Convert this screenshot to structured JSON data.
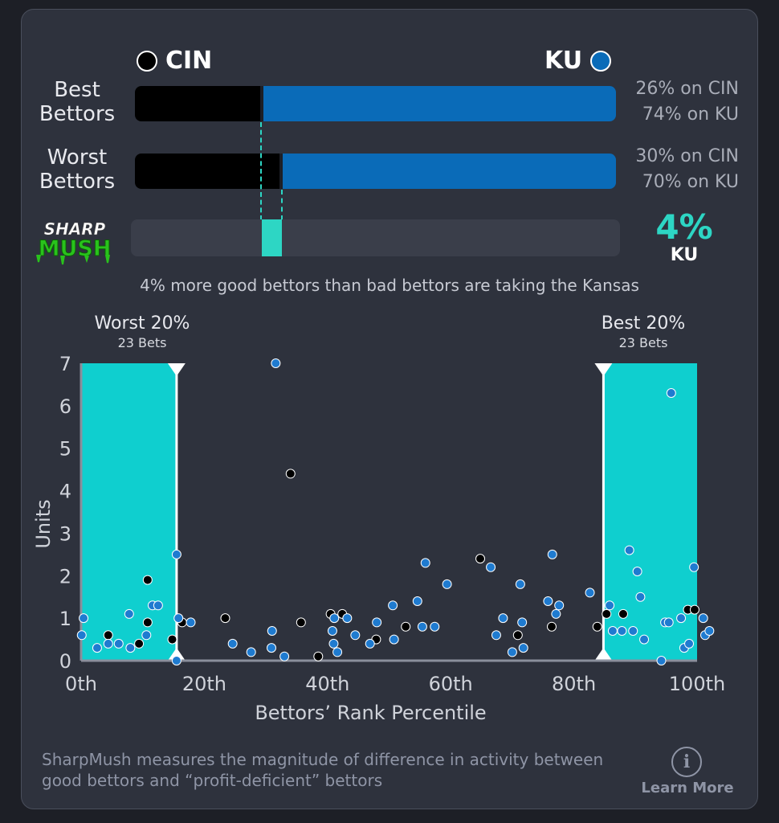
{
  "teams": {
    "left": {
      "abbr": "CIN",
      "color": "#000000"
    },
    "right": {
      "abbr": "KU",
      "color": "#0a6bb8"
    }
  },
  "rows": [
    {
      "label_line1": "Best",
      "label_line2": "Bettors",
      "cin_pct": 26,
      "ku_pct": 74,
      "cin_text": "26% on CIN",
      "ku_text": "74% on KU"
    },
    {
      "label_line1": "Worst",
      "label_line2": "Bettors",
      "cin_pct": 30,
      "ku_pct": 70,
      "cin_text": "30% on CIN",
      "ku_text": "70% on KU"
    }
  ],
  "sharpmush": {
    "logo_top": "SHARP",
    "logo_bottom": "MUSH",
    "value_text": "4%",
    "team_text": "KU",
    "accent": "#2dd6c4"
  },
  "summary": "4% more good bettors than bad bettors are taking the Kansas",
  "ranges": {
    "worst": {
      "title": "Worst 20%",
      "sub": "23 Bets"
    },
    "best": {
      "title": "Best 20%",
      "sub": "23 Bets"
    }
  },
  "chart_data": {
    "type": "scatter",
    "xlabel": "Bettors’ Rank Percentile",
    "ylabel": "Units",
    "xlim": [
      0,
      100
    ],
    "ylim": [
      0,
      7
    ],
    "x_ticks": [
      0,
      20,
      40,
      60,
      80,
      100
    ],
    "x_tick_labels": [
      "0th",
      "20th",
      "40th",
      "60th",
      "80th",
      "100th"
    ],
    "y_ticks": [
      0,
      1,
      2,
      3,
      4,
      5,
      6,
      7
    ],
    "highlight_bands": [
      {
        "from": 0,
        "to": 15.5
      },
      {
        "from": 84.8,
        "to": 100
      }
    ],
    "series": [
      {
        "color": "#000000",
        "points": [
          [
            4.4,
            0.6
          ],
          [
            9.4,
            0.4
          ],
          [
            10.8,
            1.9
          ],
          [
            10.8,
            0.9
          ],
          [
            14.8,
            0.5
          ],
          [
            16.4,
            0.9
          ],
          [
            23.4,
            1.0
          ],
          [
            34.0,
            4.4
          ],
          [
            35.7,
            0.9
          ],
          [
            38.5,
            0.1
          ],
          [
            40.5,
            1.1
          ],
          [
            42.4,
            1.1
          ],
          [
            47.9,
            0.5
          ],
          [
            52.7,
            0.8
          ],
          [
            64.8,
            2.4
          ],
          [
            70.9,
            0.6
          ],
          [
            76.4,
            0.8
          ],
          [
            83.8,
            0.8
          ],
          [
            85.3,
            1.1
          ],
          [
            88.0,
            1.1
          ],
          [
            98.5,
            1.2
          ],
          [
            99.6,
            1.2
          ]
        ]
      },
      {
        "color": "#1f7bd0",
        "points": [
          [
            0.4,
            1.0
          ],
          [
            0.1,
            0.6
          ],
          [
            2.6,
            0.3
          ],
          [
            4.4,
            0.4
          ],
          [
            6.1,
            0.4
          ],
          [
            7.8,
            1.1
          ],
          [
            8.0,
            0.3
          ],
          [
            10.6,
            0.6
          ],
          [
            11.6,
            1.3
          ],
          [
            12.5,
            1.3
          ],
          [
            15.5,
            2.5
          ],
          [
            15.8,
            1.0
          ],
          [
            15.5,
            0.0
          ],
          [
            17.8,
            0.9
          ],
          [
            24.6,
            0.4
          ],
          [
            27.6,
            0.2
          ],
          [
            30.9,
            0.3
          ],
          [
            31.0,
            0.7
          ],
          [
            31.6,
            7.0
          ],
          [
            33.0,
            0.1
          ],
          [
            41.0,
            0.4
          ],
          [
            40.8,
            0.7
          ],
          [
            41.1,
            1.0
          ],
          [
            41.6,
            0.2
          ],
          [
            43.2,
            1.0
          ],
          [
            44.5,
            0.6
          ],
          [
            46.9,
            0.4
          ],
          [
            48.0,
            0.9
          ],
          [
            50.6,
            1.3
          ],
          [
            50.8,
            0.5
          ],
          [
            54.6,
            1.4
          ],
          [
            55.4,
            0.8
          ],
          [
            55.9,
            2.3
          ],
          [
            57.4,
            0.8
          ],
          [
            59.4,
            1.8
          ],
          [
            66.5,
            2.2
          ],
          [
            67.4,
            0.6
          ],
          [
            68.5,
            1.0
          ],
          [
            70.0,
            0.2
          ],
          [
            71.3,
            1.8
          ],
          [
            71.6,
            0.9
          ],
          [
            71.8,
            0.3
          ],
          [
            75.8,
            1.4
          ],
          [
            76.5,
            2.5
          ],
          [
            77.1,
            1.1
          ],
          [
            77.6,
            1.3
          ],
          [
            82.6,
            1.6
          ],
          [
            85.8,
            1.3
          ],
          [
            86.3,
            0.7
          ],
          [
            87.8,
            0.7
          ],
          [
            89.0,
            2.6
          ],
          [
            89.6,
            0.7
          ],
          [
            90.3,
            2.1
          ],
          [
            90.8,
            1.5
          ],
          [
            91.4,
            0.5
          ],
          [
            94.2,
            0.0
          ],
          [
            94.8,
            0.9
          ],
          [
            95.4,
            0.9
          ],
          [
            95.8,
            6.3
          ],
          [
            97.4,
            1.0
          ],
          [
            97.9,
            0.3
          ],
          [
            98.7,
            0.4
          ],
          [
            99.5,
            2.2
          ],
          [
            101.0,
            1.0
          ],
          [
            101.3,
            0.6
          ],
          [
            102.0,
            0.7
          ]
        ]
      }
    ]
  },
  "footer": {
    "text": "SharpMush measures the magnitude of difference in activity between good bettors and “profit-deficient” bettors",
    "info_icon": "i",
    "learn_more": "Learn More"
  }
}
